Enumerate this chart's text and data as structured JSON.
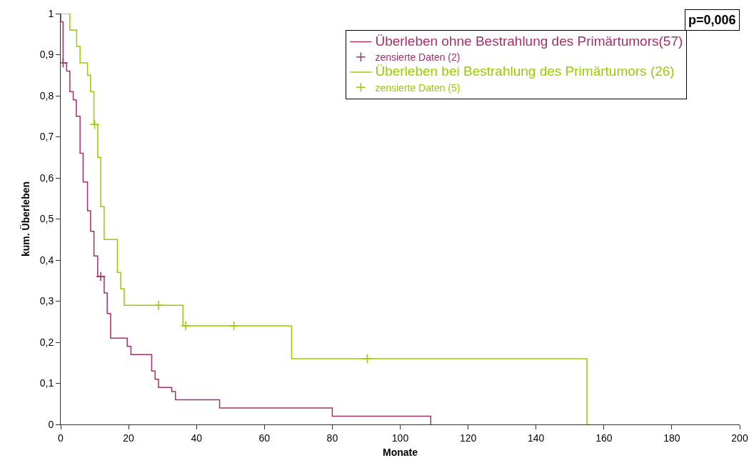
{
  "chart_data": {
    "type": "step",
    "xlabel": "Monate",
    "ylabel": "kum. Überleben",
    "xlim": [
      0,
      200
    ],
    "xticks": [
      0,
      20,
      40,
      60,
      80,
      100,
      120,
      140,
      160,
      180,
      200
    ],
    "ylim": [
      0,
      1
    ],
    "yticks": [
      0,
      {
        "value": 0.1,
        "label": "0,1"
      },
      {
        "value": 0.2,
        "label": "0,2"
      },
      {
        "value": 0.3,
        "label": "0,3"
      },
      {
        "value": 0.4,
        "label": "0,4"
      },
      {
        "value": 0.5,
        "label": "0,5"
      },
      {
        "value": 0.6,
        "label": "0,6"
      },
      {
        "value": 0.7,
        "label": "0,7"
      },
      {
        "value": 0.8,
        "label": "0,8"
      },
      {
        "value": 0.9,
        "label": "0,9"
      },
      1
    ],
    "grid": false,
    "legend": "top right",
    "line_style": "solid",
    "annotations": [
      "p=0,006"
    ],
    "series": [
      {
        "name": "Überleben ohne Bestrahlung des Primärtumors(57)",
        "marker": "none",
        "color": "#a3306b",
        "x": [
          0,
          0,
          0.7,
          1.75,
          2.7,
          3.7,
          4.6,
          5.7,
          6.6,
          7.9,
          8.8,
          9.8,
          10.9,
          12.8,
          13.7,
          14.7,
          19.6,
          20.7,
          26.8,
          27.8,
          28.8,
          32.7,
          33.8,
          46.8,
          80,
          109
        ],
        "values": [
          1,
          0.98,
          0.88,
          0.86,
          0.81,
          0.79,
          0.75,
          0.66,
          0.59,
          0.52,
          0.47,
          0.41,
          0.36,
          0.32,
          0.27,
          0.21,
          0.19,
          0.17,
          0.13,
          0.11,
          0.09,
          0.08,
          0.06,
          0.04,
          0.02,
          0
        ]
      },
      {
        "name": "zensierte Daten (2)",
        "type": "scatter",
        "marker": "cross",
        "color": "#a3306b",
        "x": [
          0.7,
          11.8
        ],
        "values": [
          0.88,
          0.36
        ]
      },
      {
        "name": "Überleben bei Bestrahlung des Primärtumors (26)",
        "marker": "none",
        "color": "#99cc00",
        "x": [
          0,
          2.7,
          4.7,
          5.7,
          7.9,
          8.8,
          9.8,
          10.9,
          11.8,
          12.8,
          16.7,
          17.7,
          18.7,
          36,
          68,
          155
        ],
        "values": [
          1,
          0.96,
          0.92,
          0.88,
          0.85,
          0.81,
          0.73,
          0.65,
          0.53,
          0.45,
          0.37,
          0.33,
          0.29,
          0.24,
          0.16,
          0
        ]
      },
      {
        "name": "zensierte Daten (5)",
        "type": "scatter",
        "marker": "cross",
        "color": "#99cc00",
        "x": [
          10,
          28.8,
          36.8,
          51,
          90.3
        ],
        "values": [
          0.73,
          0.29,
          0.24,
          0.24,
          0.16
        ]
      }
    ]
  }
}
